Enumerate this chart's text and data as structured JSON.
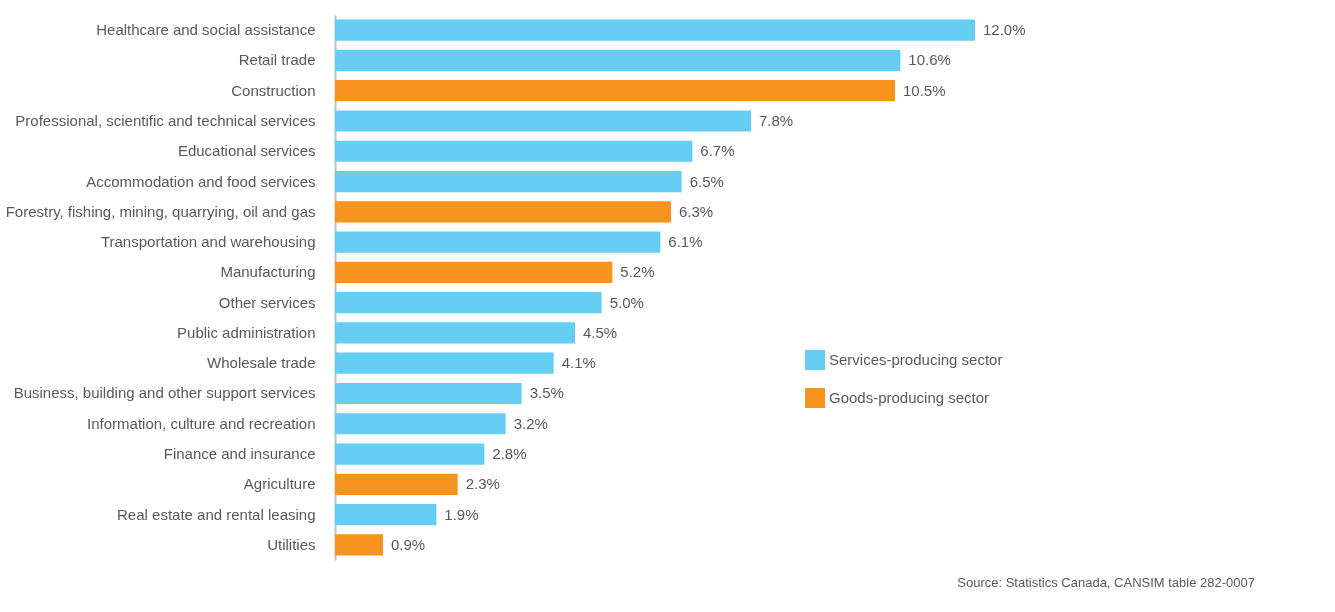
{
  "chart_data": {
    "type": "bar",
    "orientation": "horizontal",
    "categories": [
      "Healthcare  and social assistance",
      "Retail trade",
      "Construction",
      "Professional, scientific and technical services",
      "Educational services",
      "Accommodation and food services",
      "Forestry, fishing, mining, quarrying, oil and gas",
      "Transportation and warehousing",
      "Manufacturing",
      "Other services",
      "Public administration",
      "Wholesale trade",
      "Business, building and other support services",
      "Information, culture and recreation",
      "Finance and insurance",
      "Agriculture",
      "Real estate and rental leasing",
      "Utilities"
    ],
    "series": [
      {
        "name": "Services-producing sector",
        "color": "#66cdf3",
        "values": [
          12.0,
          10.6,
          null,
          7.8,
          6.7,
          6.5,
          null,
          6.1,
          null,
          5.0,
          4.5,
          4.1,
          3.5,
          3.2,
          2.8,
          null,
          1.9,
          null
        ],
        "value_labels": [
          "12.0%",
          "10.6%",
          null,
          "7.8%",
          "6.7%",
          "6.5%",
          null,
          "6.1%",
          null,
          "5.0%",
          "4.5%",
          "4.1%",
          "3.5%",
          "3.2%",
          "2.8%",
          null,
          "1.9%",
          null
        ]
      },
      {
        "name": "Goods-producing sector",
        "color": "#f7941d",
        "values": [
          null,
          null,
          10.5,
          null,
          null,
          null,
          6.3,
          null,
          5.2,
          null,
          null,
          null,
          null,
          null,
          null,
          2.3,
          null,
          0.9
        ],
        "value_labels": [
          null,
          null,
          "10.5%",
          null,
          null,
          null,
          "6.3%",
          null,
          "5.2%",
          null,
          null,
          null,
          null,
          null,
          null,
          "2.3%",
          null,
          "0.9%"
        ]
      }
    ],
    "legend": "right",
    "grid": false,
    "annotations": [
      "Source: Statistics Canada, CANSIM table 282-0007"
    ]
  }
}
